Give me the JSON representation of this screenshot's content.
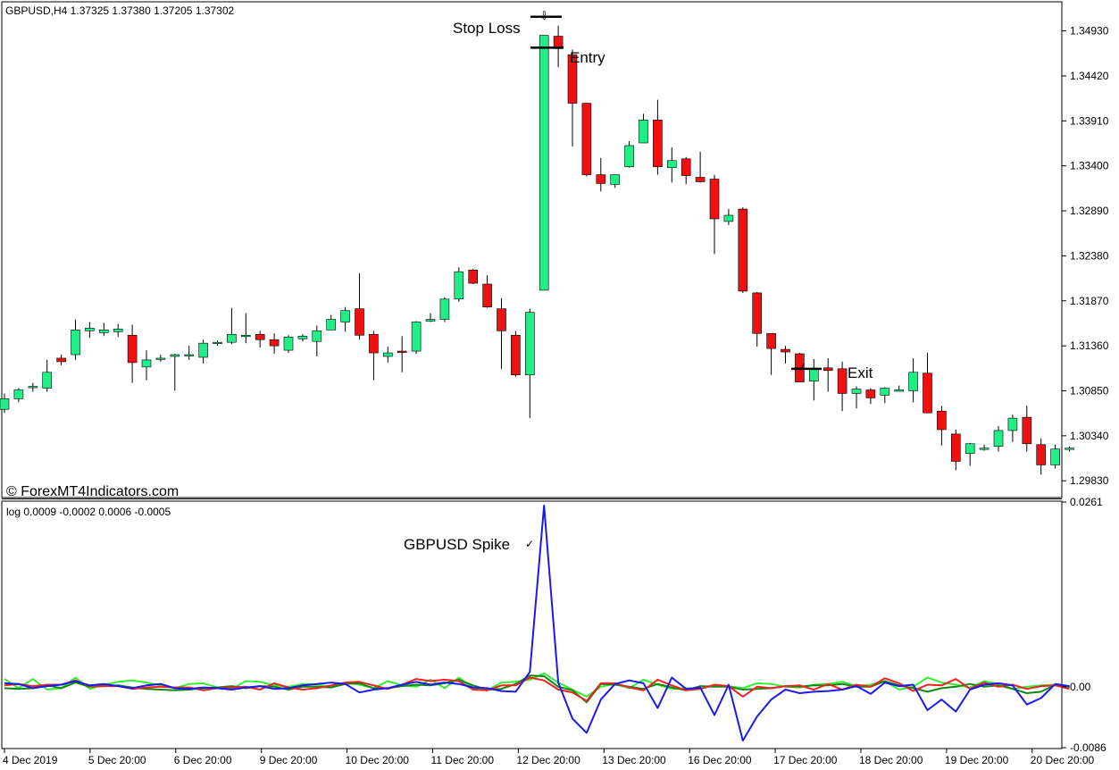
{
  "header": {
    "symbol_info": "GBPUSD,H4  1.37325 1.37380 1.37205 1.37302"
  },
  "watermark": "© ForexMT4Indicators.com",
  "price_axis": {
    "ticks": [
      "1.34930",
      "1.34420",
      "1.33910",
      "1.33400",
      "1.32890",
      "1.32380",
      "1.31870",
      "1.31360",
      "1.30850",
      "1.30340",
      "1.29830"
    ]
  },
  "indicator": {
    "header": "log 0.0009 -0.0002 0.0006 -0.0005",
    "axis_ticks": [
      "0.0261",
      "0.00",
      "-0.0086"
    ]
  },
  "time_axis": {
    "ticks": [
      "4 Dec 2019",
      "5 Dec 20:00",
      "6 Dec 20:00",
      "9 Dec 20:00",
      "10 Dec 20:00",
      "11 Dec 20:00",
      "12 Dec 20:00",
      "13 Dec 20:00",
      "16 Dec 20:00",
      "17 Dec 20:00",
      "18 Dec 20:00",
      "19 Dec 20:00",
      "20 Dec 20:00"
    ]
  },
  "annotations": {
    "stop_loss": "Stop Loss",
    "entry": "Entry",
    "exit": "Exit",
    "spike": "GBPUSD Spike"
  },
  "colors": {
    "bull": "#22ee88",
    "bear": "#ee1111",
    "blue_line": "#1a1aee",
    "red_line": "#ee2222",
    "green_line": "#118811",
    "lime_line": "#33ee33"
  },
  "chart_data": [
    {
      "type": "candlestick",
      "title": "GBPUSD,H4",
      "ylim": [
        1.2965,
        1.3525
      ],
      "candles": [
        [
          1.3064,
          1.3082,
          1.306,
          1.3076
        ],
        [
          1.3076,
          1.3088,
          1.3072,
          1.3086
        ],
        [
          1.309,
          1.3094,
          1.3084,
          1.309
        ],
        [
          1.3088,
          1.312,
          1.3084,
          1.3106
        ],
        [
          1.3122,
          1.3126,
          1.3114,
          1.3118
        ],
        [
          1.3126,
          1.3166,
          1.312,
          1.3154
        ],
        [
          1.3153,
          1.3163,
          1.3145,
          1.3156
        ],
        [
          1.3151,
          1.3162,
          1.3147,
          1.3154
        ],
        [
          1.3152,
          1.3161,
          1.3146,
          1.3155
        ],
        [
          1.3148,
          1.316,
          1.3094,
          1.3117
        ],
        [
          1.3112,
          1.3131,
          1.3097,
          1.312
        ],
        [
          1.3122,
          1.3126,
          1.3118,
          1.3122
        ],
        [
          1.3124,
          1.3127,
          1.3085,
          1.3126
        ],
        [
          1.3125,
          1.3136,
          1.312,
          1.3126
        ],
        [
          1.3123,
          1.3143,
          1.3116,
          1.3139
        ],
        [
          1.3139,
          1.3142,
          1.3136,
          1.314
        ],
        [
          1.314,
          1.3179,
          1.3138,
          1.3149
        ],
        [
          1.3148,
          1.3173,
          1.3139,
          1.3148
        ],
        [
          1.3149,
          1.3153,
          1.3134,
          1.3143
        ],
        [
          1.3143,
          1.315,
          1.3127,
          1.3136
        ],
        [
          1.3131,
          1.3148,
          1.3128,
          1.3146
        ],
        [
          1.3144,
          1.3149,
          1.3141,
          1.3147
        ],
        [
          1.3141,
          1.3159,
          1.3124,
          1.3153
        ],
        [
          1.3154,
          1.3171,
          1.3154,
          1.3166
        ],
        [
          1.3163,
          1.318,
          1.3152,
          1.3176
        ],
        [
          1.3178,
          1.3218,
          1.3143,
          1.3148
        ],
        [
          1.3149,
          1.3153,
          1.3097,
          1.3128
        ],
        [
          1.3124,
          1.3135,
          1.3117,
          1.3128
        ],
        [
          1.313,
          1.3147,
          1.3106,
          1.3129
        ],
        [
          1.313,
          1.3164,
          1.3127,
          1.3163
        ],
        [
          1.3164,
          1.3173,
          1.3163,
          1.3166
        ],
        [
          1.3166,
          1.3191,
          1.3163,
          1.3189
        ],
        [
          1.3189,
          1.3225,
          1.3186,
          1.322
        ],
        [
          1.3222,
          1.3223,
          1.3206,
          1.3207
        ],
        [
          1.3206,
          1.3216,
          1.3179,
          1.318
        ],
        [
          1.3178,
          1.319,
          1.311,
          1.3153
        ],
        [
          1.3148,
          1.3153,
          1.3101,
          1.3103
        ],
        [
          1.3103,
          1.3178,
          1.3054,
          1.3174
        ],
        [
          1.3199,
          1.3488,
          1.3199,
          1.3488
        ],
        [
          1.3487,
          1.3499,
          1.3452,
          1.3473
        ],
        [
          1.3466,
          1.3472,
          1.3362,
          1.3411
        ],
        [
          1.3411,
          1.3411,
          1.3328,
          1.333
        ],
        [
          1.333,
          1.3349,
          1.3311,
          1.332
        ],
        [
          1.3319,
          1.3329,
          1.3315,
          1.333
        ],
        [
          1.3339,
          1.3368,
          1.3338,
          1.3363
        ],
        [
          1.3366,
          1.3399,
          1.3366,
          1.3392
        ],
        [
          1.3392,
          1.3415,
          1.333,
          1.3339
        ],
        [
          1.3338,
          1.3361,
          1.3321,
          1.3346
        ],
        [
          1.3348,
          1.335,
          1.3319,
          1.3329
        ],
        [
          1.3327,
          1.3356,
          1.3321,
          1.3322
        ],
        [
          1.3325,
          1.333,
          1.324,
          1.328
        ],
        [
          1.3277,
          1.3291,
          1.3273,
          1.3284
        ],
        [
          1.3291,
          1.3293,
          1.3196,
          1.3198
        ],
        [
          1.3196,
          1.3197,
          1.3135,
          1.315
        ],
        [
          1.315,
          1.315,
          1.3103,
          1.3133
        ],
        [
          1.3132,
          1.3136,
          1.3116,
          1.3129
        ],
        [
          1.3127,
          1.3128,
          1.3096,
          1.3095
        ],
        [
          1.3096,
          1.3121,
          1.3074,
          1.311
        ],
        [
          1.3111,
          1.3122,
          1.3084,
          1.3108
        ],
        [
          1.311,
          1.3118,
          1.3062,
          1.3082
        ],
        [
          1.3082,
          1.309,
          1.3065,
          1.3087
        ],
        [
          1.3086,
          1.3088,
          1.307,
          1.3077
        ],
        [
          1.308,
          1.3089,
          1.3071,
          1.3088
        ],
        [
          1.3085,
          1.3091,
          1.3085,
          1.3086
        ],
        [
          1.3085,
          1.3122,
          1.3072,
          1.3106
        ],
        [
          1.3105,
          1.3128,
          1.3062,
          1.306
        ],
        [
          1.3062,
          1.3068,
          1.3023,
          1.3041
        ],
        [
          1.3036,
          1.3041,
          1.2995,
          1.3005
        ],
        [
          1.3014,
          1.3026,
          1.3,
          1.3025
        ],
        [
          1.302,
          1.3024,
          1.3017,
          1.302
        ],
        [
          1.3022,
          1.3045,
          1.3016,
          1.304
        ],
        [
          1.304,
          1.3058,
          1.3027,
          1.3054
        ],
        [
          1.3055,
          1.3068,
          1.3016,
          1.3025
        ],
        [
          1.3024,
          1.3031,
          1.299,
          1.3001
        ],
        [
          1.3001,
          1.3024,
          1.2997,
          1.3019
        ],
        [
          1.3019,
          1.3022,
          1.3016,
          1.302
        ]
      ],
      "annotation_levels": {
        "stop_loss": 1.3509,
        "entry": 1.3474,
        "exit": 1.311
      }
    },
    {
      "type": "line",
      "title": "log",
      "ylim": [
        -0.0086,
        0.0261
      ],
      "series": [
        {
          "values": [
            0.0005,
            0.0004,
            -0.0002,
            0.0001,
            0.0003,
            0.0008,
            0.0002,
            0.0004,
            0.0001,
            -0.0002,
            0.0002,
            0.0004,
            -0.0002,
            -0.0003,
            -0.0001,
            -0.0002,
            -0.0004,
            -0.0001,
            0.0001,
            -0.0003,
            -0.0002,
            0.0002,
            0.0004,
            0.0006,
            0.0004,
            -0.0008,
            -0.0004,
            -0.0002,
            0.0003,
            0.0007,
            0.0003,
            0.0006,
            0.0004,
            -0.0001,
            -0.0002,
            -0.0006,
            -0.0007,
            0.0021,
            0.0256,
            0.0006,
            -0.0045,
            -0.0065,
            -0.0018,
            0.0004,
            0.0009,
            0.0005,
            -0.003,
            0.0013,
            -0.0003,
            -0.0001,
            -0.004,
            0.0003,
            -0.0076,
            -0.0042,
            -0.0018,
            -0.0004,
            -0.0009,
            -0.0007,
            -0.0006,
            -0.0004,
            0.0001,
            -0.001,
            0.0006,
            0.0001,
            0.0003,
            -0.0033,
            -0.0018,
            -0.0035,
            -0.0004,
            0.0003,
            0.0005,
            0.0002,
            -0.0025,
            -0.0016,
            0.0004,
            0.0001
          ]
        },
        {
          "values": [
            0.0002,
            0.0004,
            0.0001,
            0.0003,
            0.0003,
            0.0009,
            0.0001,
            0.0001,
            0.0001,
            -0.0003,
            -0.0001,
            0.0,
            -0.0001,
            -0.0001,
            -0.0005,
            -0.0002,
            -0.0001,
            0.0,
            -0.0004,
            0.0005,
            -0.0001,
            -0.0004,
            -0.0002,
            0.0002,
            0.0006,
            0.0007,
            0.0002,
            -0.0003,
            0.0003,
            0.0011,
            0.0008,
            0.001,
            0.0008,
            -0.0004,
            -0.0005,
            0.0002,
            0.0002,
            0.0013,
            0.0009,
            -0.0004,
            -0.0008,
            -0.002,
            0.0005,
            0.0005,
            -0.0001,
            -0.0005,
            0.001,
            0.0002,
            -0.0005,
            -0.0003,
            0.0003,
            0.0001,
            -0.0014,
            0.0,
            -0.0002,
            0.0001,
            0.0002,
            -0.0004,
            0.0004,
            -0.0004,
            0.0003,
            0.0,
            0.0012,
            0.0005,
            -0.0006,
            0.0003,
            0.0002,
            0.0011,
            -0.0003,
            0.0006,
            0.0,
            0.0003,
            -0.0003,
            0.0001,
            0.0002,
            -0.0003
          ]
        },
        {
          "values": [
            -0.0002,
            -0.0003,
            -0.0002,
            0.0002,
            -0.0002,
            0.0006,
            0.0,
            0.0001,
            0.0002,
            -0.0001,
            -0.0003,
            -0.0004,
            -0.0005,
            -0.0004,
            -0.0002,
            -0.0001,
            0.0001,
            -0.0002,
            0.0001,
            0.0,
            -0.0004,
            0.0,
            0.0,
            -0.0001,
            0.0004,
            0.0005,
            -0.0002,
            -0.0002,
            0.0001,
            0.0003,
            0.0002,
            0.0005,
            0.001,
            0.0002,
            -0.0004,
            -0.0003,
            0.0004,
            0.0016,
            0.0015,
            0.0,
            -0.0005,
            -0.0022,
            0.0004,
            0.0003,
            0.0,
            -0.0003,
            0.0004,
            -0.0001,
            -0.0005,
            0.0001,
            0.0,
            0.0,
            -0.0004,
            -0.0003,
            -0.0002,
            0.0001,
            0.0,
            0.0002,
            0.0002,
            0.0004,
            0.0,
            0.0,
            0.0008,
            0.0002,
            -0.0002,
            -0.0007,
            -0.0002,
            0.0,
            0.0004,
            0.0,
            0.0002,
            -0.0003,
            -0.0009,
            -0.0007,
            0.0003,
            -0.0001
          ]
        },
        {
          "values": [
            0.0011,
            -0.0002,
            0.0011,
            -0.0004,
            -0.0002,
            0.0013,
            -0.0003,
            0.0003,
            0.0007,
            0.0009,
            0.0006,
            0.0002,
            -0.0002,
            0.0004,
            0.0005,
            -0.0001,
            -0.0003,
            0.0008,
            0.0007,
            0.0002,
            0.0,
            0.0004,
            0.0003,
            0.0,
            0.0006,
            0.0003,
            -0.0002,
            0.0008,
            0.0002,
            0.0,
            0.001,
            -0.0002,
            0.0013,
            -0.0002,
            -0.0005,
            0.0006,
            0.0007,
            0.001,
            0.0019,
            0.0006,
            -0.0004,
            -0.0014,
            0.0,
            0.0004,
            -0.0002,
            0.001,
            0.0003,
            -0.0003,
            -0.0002,
            -0.0003,
            0.0002,
            0.0001,
            -0.0002,
            0.0005,
            0.0004,
            0.0,
            -0.0001,
            0.0003,
            0.0004,
            0.0007,
            0.0001,
            0.0003,
            0.0008,
            -0.0004,
            0.0,
            0.0013,
            0.0006,
            0.0003,
            -0.0001,
            0.0008,
            0.0004,
            -0.0003,
            0.0,
            0.0002,
            0.0003,
            -0.0002
          ]
        }
      ]
    }
  ]
}
